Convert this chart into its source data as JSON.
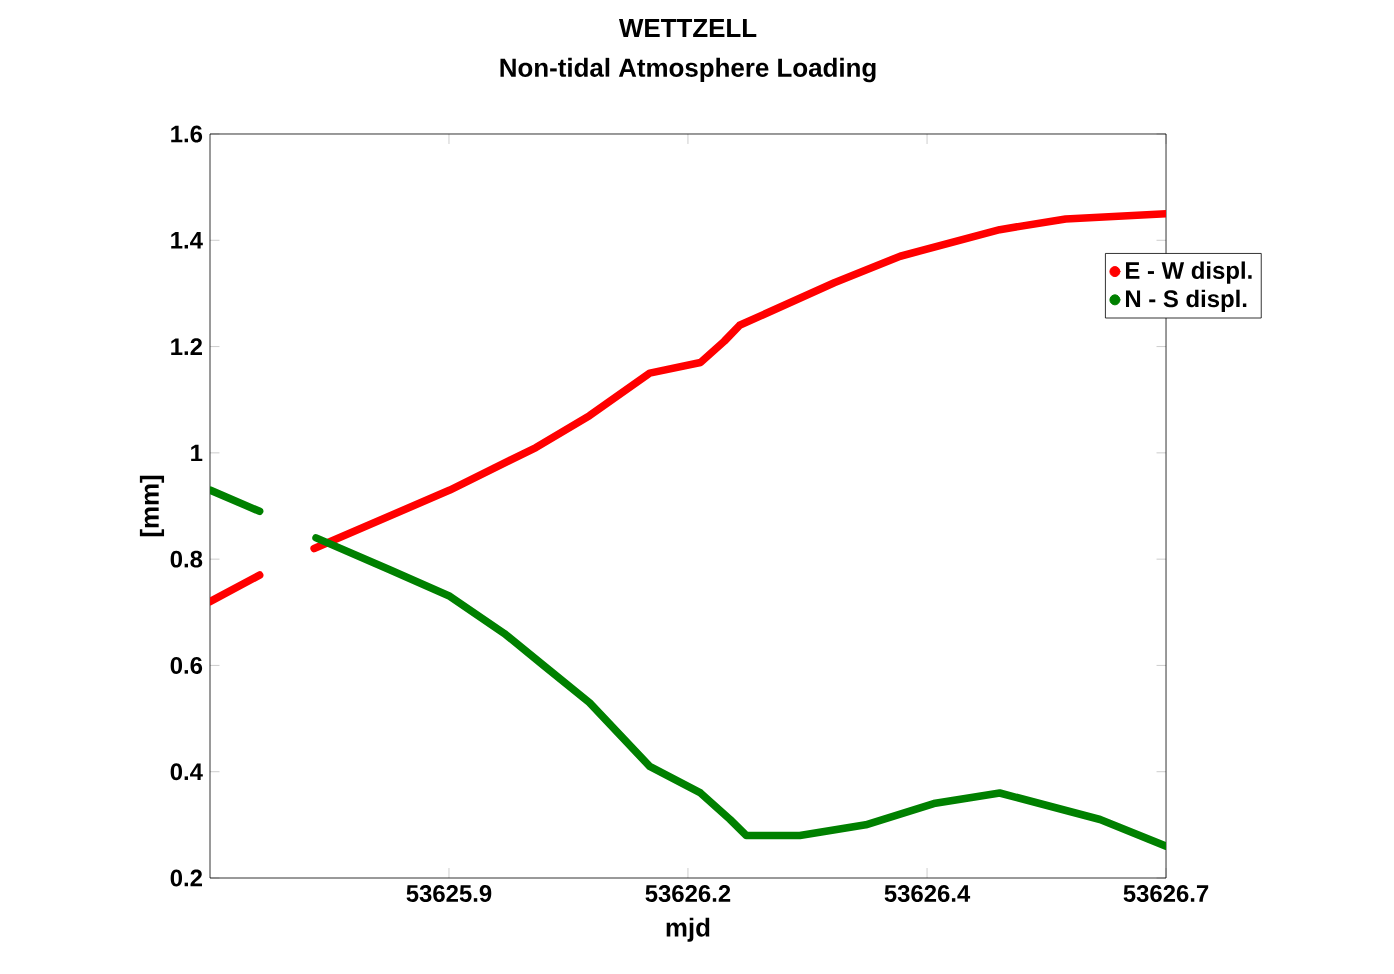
{
  "chart_data": {
    "type": "line",
    "title": "WETTZELL",
    "subtitle": "Non-tidal Atmosphere Loading",
    "xlabel": "mjd",
    "ylabel": "[mm]",
    "xlim": [
      53625.7,
      53626.7
    ],
    "xticks": [
      {
        "value": 53625.95,
        "label": "53625.9"
      },
      {
        "value": 53626.2,
        "label": "53626.2"
      },
      {
        "value": 53626.45,
        "label": "53626.4"
      },
      {
        "value": 53626.7,
        "label": "53626.7"
      }
    ],
    "ylim": [
      0.2,
      1.6
    ],
    "yticks": [
      0.2,
      0.4,
      0.6,
      0.8,
      1,
      1.2,
      1.4,
      1.6
    ],
    "legend": "top right",
    "grid": false,
    "series": [
      {
        "name": "E - W displ.",
        "color": "#ff0000",
        "x": [
          53625.7,
          53625.752,
          53625.78,
          53625.809,
          53625.951,
          53626.041,
          53626.097,
          53626.16,
          53626.213,
          53626.238,
          53626.254,
          53626.353,
          53626.422,
          53626.526,
          53626.595,
          53626.7
        ],
        "values": [
          0.72,
          0.77,
          null,
          0.82,
          0.93,
          1.01,
          1.07,
          1.15,
          1.17,
          1.21,
          1.24,
          1.32,
          1.37,
          1.42,
          1.44,
          1.45
        ]
      },
      {
        "name": "N - S  displ.",
        "color": "#008000",
        "x": [
          53625.7,
          53625.752,
          53625.78,
          53625.811,
          53625.888,
          53625.951,
          53626.008,
          53626.049,
          53626.097,
          53626.16,
          53626.213,
          53626.244,
          53626.261,
          53626.317,
          53626.386,
          53626.457,
          53626.526,
          53626.631,
          53626.7
        ],
        "values": [
          0.93,
          0.89,
          null,
          0.84,
          0.78,
          0.73,
          0.66,
          0.6,
          0.53,
          0.41,
          0.36,
          0.31,
          0.28,
          0.28,
          0.3,
          0.34,
          0.36,
          0.31,
          0.26
        ]
      }
    ]
  }
}
